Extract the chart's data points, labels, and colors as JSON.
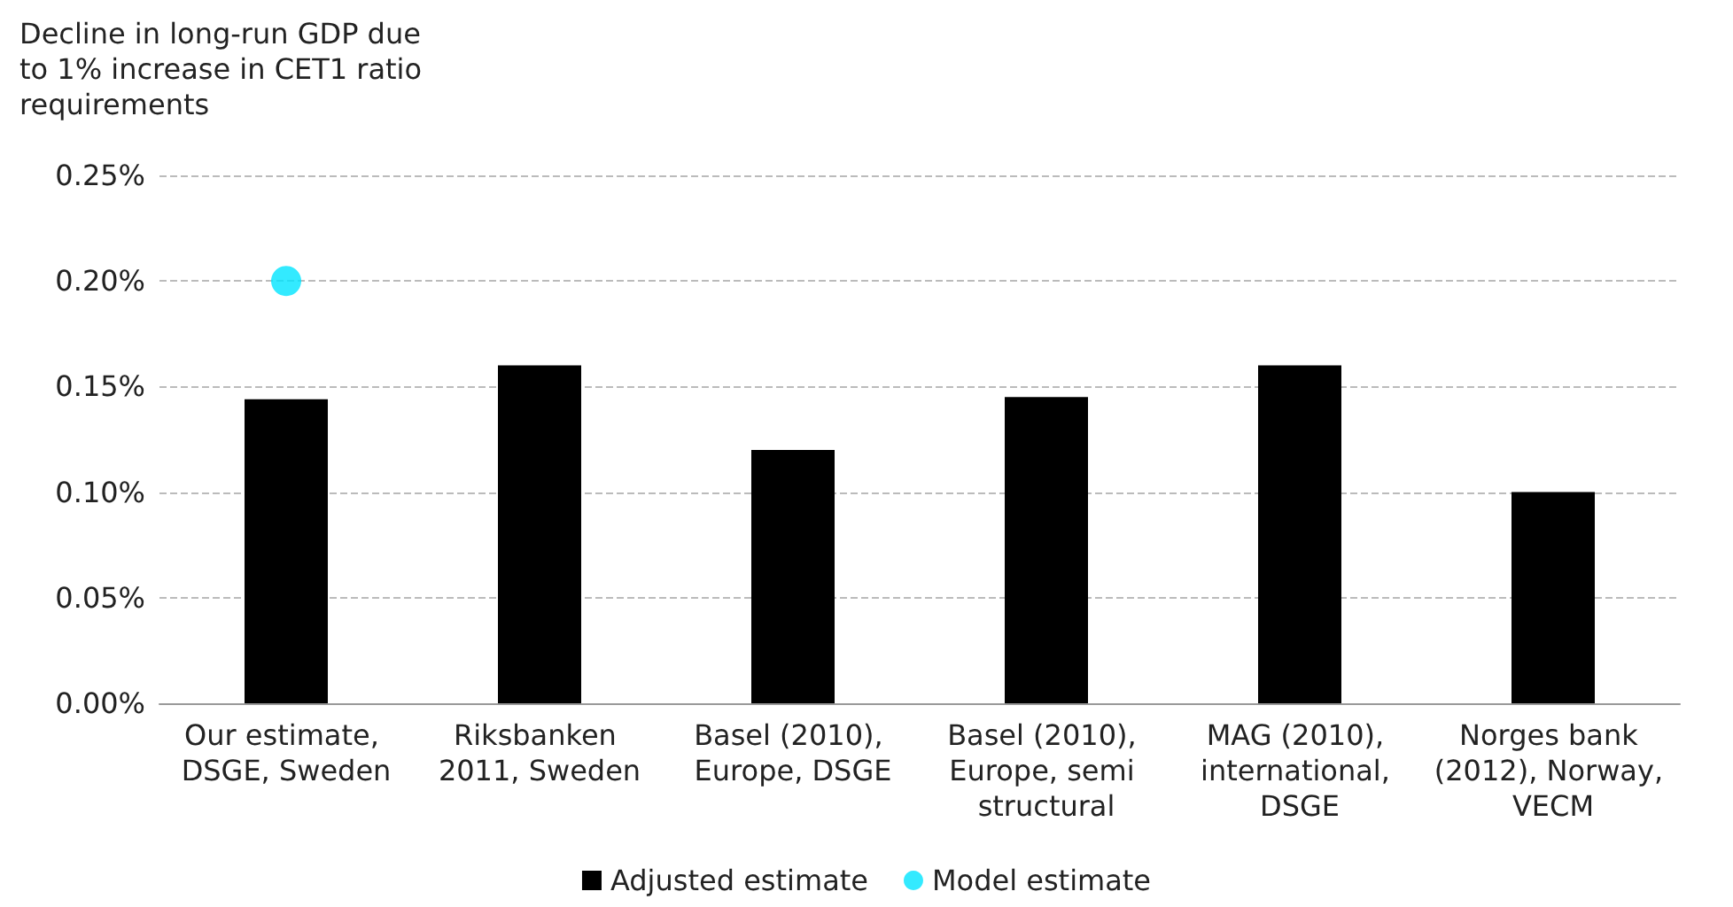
{
  "chart_data": {
    "type": "bar",
    "ylabel": "Decline in long-run GDP due to 1% increase in CET1 ratio requirements",
    "categories": [
      "Our estimate, DSGE, Sweden",
      "Riksbanken 2011, Sweden",
      "Basel (2010), Europe, DSGE",
      "Basel (2010), Europe, semi structural",
      "MAG (2010), international, DSGE",
      "Norges bank (2012), Norway, VECM"
    ],
    "series": [
      {
        "name": "Adjusted estimate",
        "color": "#000000",
        "values": [
          0.144,
          0.16,
          0.12,
          0.145,
          0.16,
          0.1
        ]
      },
      {
        "name": "Model estimate",
        "type": "scatter",
        "color": "#00e5ff",
        "marker": "circle",
        "values": [
          0.2,
          null,
          null,
          null,
          null,
          null
        ]
      }
    ],
    "ylim": [
      0,
      0.25
    ],
    "yticks": [
      {
        "value": 0,
        "label": "0.00%"
      },
      {
        "value": 0.05,
        "label": "0.05%"
      },
      {
        "value": 0.1,
        "label": "0.10%"
      },
      {
        "value": 0.15,
        "label": "0.15%"
      },
      {
        "value": 0.2,
        "label": "0.20%"
      },
      {
        "value": 0.25,
        "label": "0.25%"
      }
    ],
    "grid": "y",
    "legend": "bottom"
  }
}
